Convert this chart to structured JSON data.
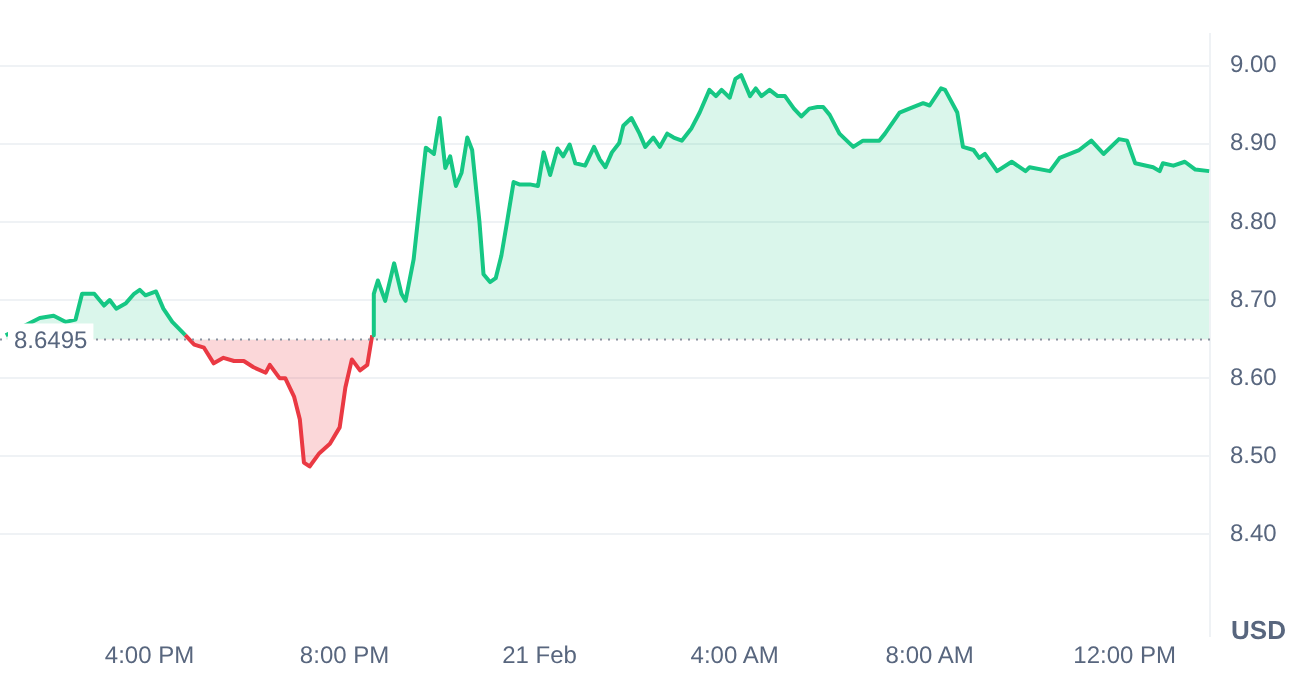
{
  "chart_data": {
    "type": "area",
    "ylabel": "USD",
    "xlim": [
      "--02-20T12:56",
      "--02-21T13:45"
    ],
    "ylim": [
      8.27,
      9.04
    ],
    "xticks": [
      {
        "value": "--02-20T16:00",
        "label": "4:00 PM"
      },
      {
        "value": "--02-20T20:00",
        "label": "8:00 PM"
      },
      {
        "value": "--02-21T00:00",
        "label": "21 Feb"
      },
      {
        "value": "--02-21T04:00",
        "label": "4:00 AM"
      },
      {
        "value": "--02-21T08:00",
        "label": "8:00 AM"
      },
      {
        "value": "--02-21T12:00",
        "label": "12:00 PM"
      }
    ],
    "yticks": [
      {
        "value": 8.4,
        "label": "8.40"
      },
      {
        "value": 8.5,
        "label": "8.50"
      },
      {
        "value": 8.6,
        "label": "8.60"
      },
      {
        "value": 8.7,
        "label": "8.70"
      },
      {
        "value": 8.8,
        "label": "8.80"
      },
      {
        "value": 8.9,
        "label": "8.90"
      },
      {
        "value": 9,
        "label": "9.00"
      }
    ],
    "grid": "y",
    "ref_lines": [
      {
        "axis": "y",
        "value": 8.6495,
        "label": "8.6495",
        "color": "#8a91a0",
        "line_style": "dotted"
      }
    ],
    "series": [
      {
        "color": "#16c784",
        "x": [
          "--02-20T13:03",
          "--02-20T13:45",
          "--02-20T14:02",
          "--02-20T14:17",
          "--02-20T14:29",
          "--02-20T14:37",
          "--02-20T14:52",
          "--02-20T15:04",
          "--02-20T15:11",
          "--02-20T15:19",
          "--02-20T15:31",
          "--02-20T15:41",
          "--02-20T15:48",
          "--02-20T15:55",
          "--02-20T16:08",
          "--02-20T16:17",
          "--02-20T16:28",
          "--02-20T16:44",
          "--02-20T16:55",
          "--02-20T17:07",
          "--02-20T17:19",
          "--02-20T17:31",
          "--02-20T17:44",
          "--02-20T17:56",
          "--02-20T18:08",
          "--02-20T18:23",
          "--02-20T18:28",
          "--02-20T18:40",
          "--02-20T18:47",
          "--02-20T18:58",
          "--02-20T19:05",
          "--02-20T19:10",
          "--02-20T19:17",
          "--02-20T19:29",
          "--02-20T19:42",
          "--02-20T19:54",
          "--02-20T20:01",
          "--02-20T20:09",
          "--02-20T20:19",
          "--02-20T20:28",
          "--02-20T20:34",
          "--02-20T20:36",
          "--02-20T20:41",
          "--02-20T20:50",
          "--02-20T21:01",
          "--02-20T21:10",
          "--02-20T21:15",
          "--02-20T21:25",
          "--02-20T21:40",
          "--02-20T21:50",
          "--02-20T21:57",
          "--02-20T22:04",
          "--02-20T22:10",
          "--02-20T22:17",
          "--02-20T22:24",
          "--02-20T22:31",
          "--02-20T22:37",
          "--02-20T22:46",
          "--02-20T22:51",
          "--02-20T22:59",
          "--02-20T23:06",
          "--02-20T23:13",
          "--02-20T23:20",
          "--02-20T23:28",
          "--02-20T23:35",
          "--02-20T23:48",
          "--02-20T23:58",
          "--02-21T00:05",
          "--02-21T00:13",
          "--02-21T00:22",
          "--02-21T00:29",
          "--02-21T00:37",
          "--02-21T00:44",
          "--02-21T00:56",
          "--02-21T01:07",
          "--02-21T01:14",
          "--02-21T01:21",
          "--02-21T01:29",
          "--02-21T01:38",
          "--02-21T01:43",
          "--02-21T01:53",
          "--02-21T02:03",
          "--02-21T02:10",
          "--02-21T02:20",
          "--02-21T02:28",
          "--02-21T02:37",
          "--02-21T02:45",
          "--02-21T02:55",
          "--02-21T03:07",
          "--02-21T03:17",
          "--02-21T03:29",
          "--02-21T03:37",
          "--02-21T03:44",
          "--02-21T03:54",
          "--02-21T04:01",
          "--02-21T04:08",
          "--02-21T04:19",
          "--02-21T04:26",
          "--02-21T04:33",
          "--02-21T04:43",
          "--02-21T04:53",
          "--02-21T05:02",
          "--02-21T05:13",
          "--02-21T05:22",
          "--02-21T05:32",
          "--02-21T05:42",
          "--02-21T05:49",
          "--02-21T05:57",
          "--02-21T06:09",
          "--02-21T06:26",
          "--02-21T06:38",
          "--02-21T06:58",
          "--02-21T07:05",
          "--02-21T07:23",
          "--02-21T07:35",
          "--02-21T07:52",
          "--02-21T08:00",
          "--02-21T08:14",
          "--02-21T08:19",
          "--02-21T08:34",
          "--02-21T08:41",
          "--02-21T08:54",
          "--02-21T09:01",
          "--02-21T09:08",
          "--02-21T09:23",
          "--02-21T09:41",
          "--02-21T09:58",
          "--02-21T10:03",
          "--02-21T10:28",
          "--02-21T10:40",
          "--02-21T10:57",
          "--02-21T11:04",
          "--02-21T11:19",
          "--02-21T11:34",
          "--02-21T11:53",
          "--02-21T12:03",
          "--02-21T12:13",
          "--02-21T12:35",
          "--02-21T12:43",
          "--02-21T12:47",
          "--02-21T13:00",
          "--02-21T13:14",
          "--02-21T13:27",
          "--02-21T13:44"
        ],
        "values": [
          8.655,
          8.677,
          8.68,
          8.672,
          8.675,
          8.708,
          8.708,
          8.693,
          8.7,
          8.689,
          8.696,
          8.708,
          8.713,
          8.706,
          8.711,
          8.689,
          8.672,
          8.655,
          8.643,
          8.639,
          8.619,
          8.626,
          8.622,
          8.622,
          8.614,
          8.607,
          8.617,
          8.6,
          8.6,
          8.576,
          8.547,
          8.492,
          8.487,
          8.504,
          8.516,
          8.537,
          8.588,
          8.624,
          8.61,
          8.617,
          8.655,
          8.708,
          8.725,
          8.699,
          8.747,
          8.708,
          8.699,
          8.752,
          8.895,
          8.887,
          8.933,
          8.869,
          8.884,
          8.846,
          8.863,
          8.908,
          8.892,
          8.8,
          8.733,
          8.723,
          8.728,
          8.757,
          8.8,
          8.851,
          8.848,
          8.848,
          8.846,
          8.889,
          8.86,
          8.894,
          8.884,
          8.899,
          8.875,
          8.872,
          8.896,
          8.88,
          8.87,
          8.889,
          8.901,
          8.923,
          8.933,
          8.913,
          8.896,
          8.908,
          8.896,
          8.913,
          8.908,
          8.904,
          8.92,
          8.94,
          8.969,
          8.961,
          8.969,
          8.959,
          8.983,
          8.988,
          8.961,
          8.971,
          8.961,
          8.969,
          8.961,
          8.961,
          8.945,
          8.935,
          8.945,
          8.947,
          8.947,
          8.937,
          8.913,
          8.896,
          8.904,
          8.904,
          8.913,
          8.94,
          8.945,
          8.952,
          8.949,
          8.971,
          8.969,
          8.94,
          8.896,
          8.892,
          8.882,
          8.887,
          8.865,
          8.877,
          8.865,
          8.87,
          8.865,
          8.882,
          8.889,
          8.892,
          8.904,
          8.887,
          8.906,
          8.904,
          8.875,
          8.87,
          8.865,
          8.875,
          8.872,
          8.877,
          8.867,
          8.865
        ],
        "colors": [
          "#16c784",
          "#16c784",
          "#16c784",
          "#16c784",
          "#16c784",
          "#16c784",
          "#16c784",
          "#16c784",
          "#16c784",
          "#16c784",
          "#16c784",
          "#16c784",
          "#16c784",
          "#16c784",
          "#16c784",
          "#16c784",
          "#16c784",
          "#16c784",
          "#ea3943",
          "#ea3943",
          "#ea3943",
          "#ea3943",
          "#ea3943",
          "#ea3943",
          "#ea3943",
          "#ea3943",
          "#ea3943",
          "#ea3943",
          "#ea3943",
          "#ea3943",
          "#ea3943",
          "#ea3943",
          "#ea3943",
          "#ea3943",
          "#ea3943",
          "#ea3943",
          "#ea3943",
          "#ea3943",
          "#ea3943",
          "#ea3943",
          "#ea3943",
          "#16c784",
          "#16c784",
          "#16c784",
          "#16c784",
          "#16c784",
          "#16c784",
          "#16c784",
          "#16c784",
          "#16c784",
          "#16c784",
          "#16c784",
          "#16c784",
          "#16c784",
          "#16c784",
          "#16c784",
          "#16c784",
          "#16c784",
          "#16c784",
          "#16c784",
          "#16c784",
          "#16c784",
          "#16c784",
          "#16c784",
          "#16c784",
          "#16c784",
          "#16c784",
          "#16c784",
          "#16c784",
          "#16c784",
          "#16c784",
          "#16c784",
          "#16c784",
          "#16c784",
          "#16c784",
          "#16c784",
          "#16c784",
          "#16c784",
          "#16c784",
          "#16c784",
          "#16c784",
          "#16c784",
          "#16c784",
          "#16c784",
          "#16c784",
          "#16c784",
          "#16c784",
          "#16c784",
          "#16c784",
          "#16c784",
          "#16c784",
          "#16c784",
          "#16c784",
          "#16c784",
          "#16c784",
          "#16c784",
          "#16c784",
          "#16c784",
          "#16c784",
          "#16c784",
          "#16c784",
          "#16c784",
          "#16c784",
          "#16c784",
          "#16c784",
          "#16c784",
          "#16c784",
          "#16c784",
          "#16c784",
          "#16c784",
          "#16c784",
          "#16c784",
          "#16c784",
          "#16c784",
          "#16c784",
          "#16c784",
          "#16c784",
          "#16c784",
          "#16c784",
          "#16c784",
          "#16c784",
          "#16c784",
          "#16c784",
          "#16c784",
          "#16c784",
          "#16c784",
          "#16c784",
          "#16c784",
          "#16c784",
          "#16c784",
          "#16c784",
          "#16c784",
          "#16c784",
          "#16c784",
          "#16c784",
          "#16c784",
          "#16c784",
          "#16c784",
          "#16c784",
          "#16c784",
          "#16c784",
          "#16c784",
          "#16c784",
          "#16c784"
        ]
      }
    ]
  }
}
